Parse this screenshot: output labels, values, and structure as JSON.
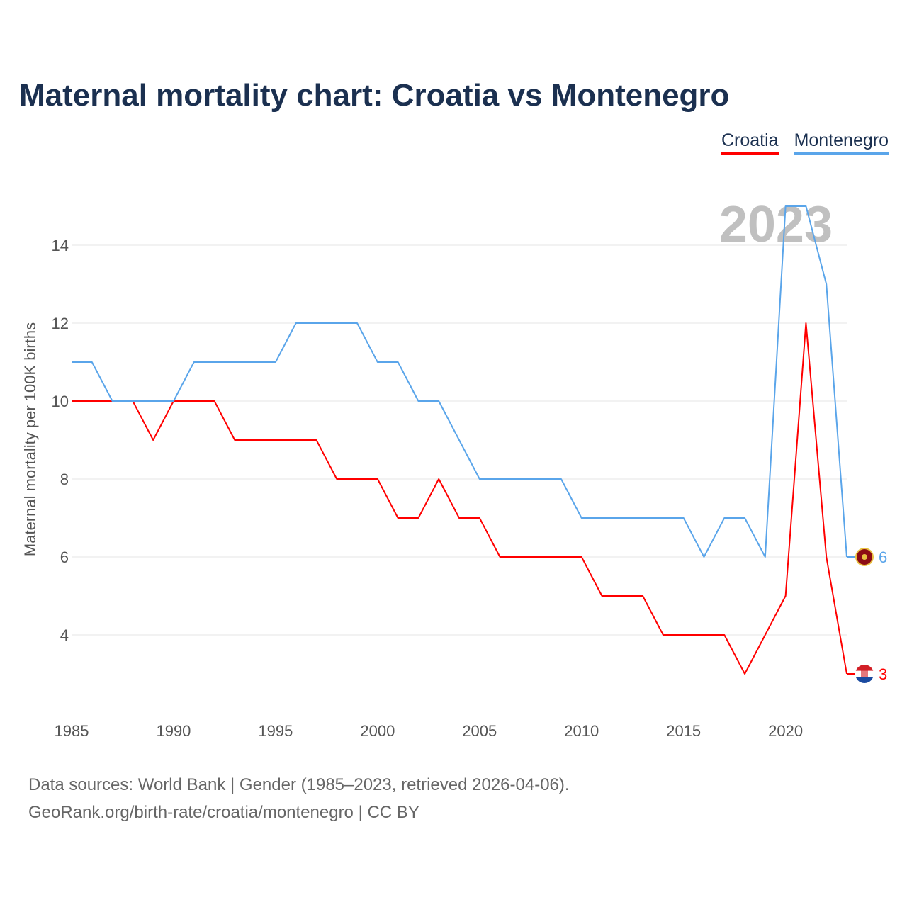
{
  "chart_data": {
    "type": "line",
    "title": "Maternal mortality chart: Croatia vs Montenegro",
    "xlabel": "",
    "ylabel": "Maternal mortality per 100K births",
    "year_label": "2023",
    "x": [
      1985,
      1986,
      1987,
      1988,
      1989,
      1990,
      1991,
      1992,
      1993,
      1994,
      1995,
      1996,
      1997,
      1998,
      1999,
      2000,
      2001,
      2002,
      2003,
      2004,
      2005,
      2006,
      2007,
      2008,
      2009,
      2010,
      2011,
      2012,
      2013,
      2014,
      2015,
      2016,
      2017,
      2018,
      2019,
      2020,
      2021,
      2022,
      2023
    ],
    "series": [
      {
        "name": "Croatia",
        "color": "#ff0000",
        "end_label": "3",
        "values": [
          10,
          10,
          10,
          10,
          9,
          10,
          10,
          10,
          9,
          9,
          9,
          9,
          9,
          8,
          8,
          8,
          7,
          7,
          8,
          7,
          7,
          6,
          6,
          6,
          6,
          6,
          5,
          5,
          5,
          4,
          4,
          4,
          4,
          3,
          4,
          5,
          12,
          6,
          3
        ]
      },
      {
        "name": "Montenegro",
        "color": "#5aa5ea",
        "end_label": "6",
        "values": [
          11,
          11,
          10,
          10,
          10,
          10,
          11,
          11,
          11,
          11,
          11,
          12,
          12,
          12,
          12,
          11,
          11,
          10,
          10,
          9,
          8,
          8,
          8,
          8,
          8,
          7,
          7,
          7,
          7,
          7,
          7,
          6,
          7,
          7,
          6,
          15,
          15,
          13,
          6
        ]
      }
    ],
    "xticks": [
      "1985",
      "1990",
      "1995",
      "2000",
      "2005",
      "2010",
      "2015",
      "2020"
    ],
    "yticks": [
      "4",
      "6",
      "8",
      "10",
      "12",
      "14"
    ],
    "xlim": [
      1985,
      2023
    ],
    "ylim": [
      3,
      15
    ],
    "grid": true,
    "legend_position": "top-right"
  },
  "footer": {
    "line1": "Data sources: World Bank | Gender (1985–2023, retrieved 2026-04-06).",
    "line2": "GeoRank.org/birth-rate/croatia/montenegro | CC BY"
  }
}
